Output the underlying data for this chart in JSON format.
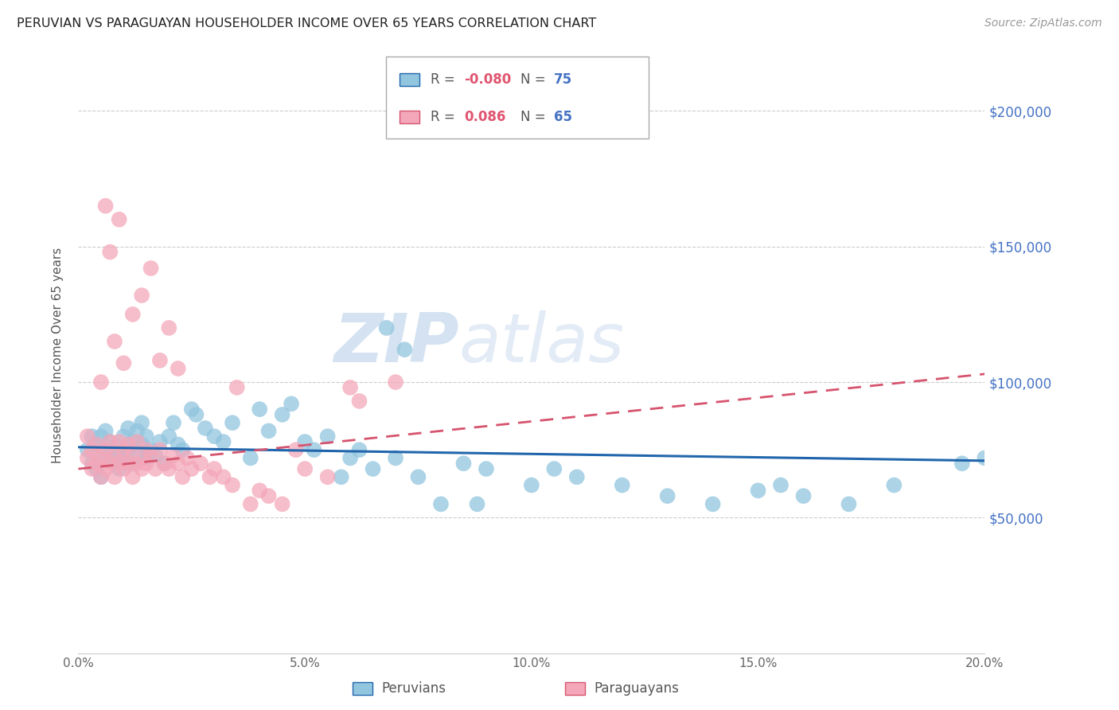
{
  "title": "PERUVIAN VS PARAGUAYAN HOUSEHOLDER INCOME OVER 65 YEARS CORRELATION CHART",
  "source": "Source: ZipAtlas.com",
  "ylabel": "Householder Income Over 65 years",
  "x_tick_labels": [
    "0.0%",
    "5.0%",
    "10.0%",
    "15.0%",
    "20.0%"
  ],
  "x_tick_positions": [
    0.0,
    5.0,
    10.0,
    15.0,
    20.0
  ],
  "y_tick_labels": [
    "$50,000",
    "$100,000",
    "$150,000",
    "$200,000"
  ],
  "y_tick_positions": [
    50000,
    100000,
    150000,
    200000
  ],
  "blue_color": "#92c5de",
  "pink_color": "#f4a7b9",
  "blue_line_color": "#2166ac",
  "pink_line_color": "#d6546e",
  "label1": "Peruvians",
  "label2": "Paraguayans",
  "watermark": "ZIPatlas",
  "bg_color": "#ffffff",
  "grid_color": "#cccccc",
  "blue_x": [
    0.2,
    0.3,
    0.3,
    0.4,
    0.4,
    0.5,
    0.5,
    0.5,
    0.6,
    0.6,
    0.7,
    0.7,
    0.8,
    0.8,
    0.9,
    0.9,
    1.0,
    1.0,
    1.1,
    1.1,
    1.2,
    1.2,
    1.3,
    1.3,
    1.4,
    1.4,
    1.5,
    1.5,
    1.6,
    1.7,
    1.8,
    1.9,
    2.0,
    2.1,
    2.2,
    2.3,
    2.5,
    2.6,
    2.8,
    3.0,
    3.2,
    3.4,
    3.8,
    4.0,
    4.2,
    4.5,
    4.7,
    5.0,
    5.2,
    5.5,
    5.8,
    6.0,
    6.2,
    6.5,
    7.0,
    7.5,
    8.0,
    8.5,
    9.0,
    10.0,
    10.5,
    11.0,
    12.0,
    13.0,
    14.0,
    15.0,
    16.0,
    17.0,
    18.0,
    19.5,
    6.8,
    7.2,
    8.8,
    15.5,
    20.0
  ],
  "blue_y": [
    75000,
    70000,
    80000,
    68000,
    77000,
    72000,
    65000,
    80000,
    75000,
    82000,
    73000,
    78000,
    70000,
    76000,
    68000,
    74000,
    72000,
    80000,
    75000,
    83000,
    70000,
    78000,
    73000,
    82000,
    77000,
    85000,
    72000,
    80000,
    75000,
    73000,
    78000,
    70000,
    80000,
    85000,
    77000,
    75000,
    90000,
    88000,
    83000,
    80000,
    78000,
    85000,
    72000,
    90000,
    82000,
    88000,
    92000,
    78000,
    75000,
    80000,
    65000,
    72000,
    75000,
    68000,
    72000,
    65000,
    55000,
    70000,
    68000,
    62000,
    68000,
    65000,
    62000,
    58000,
    55000,
    60000,
    58000,
    55000,
    62000,
    70000,
    120000,
    112000,
    55000,
    62000,
    72000
  ],
  "pink_x": [
    0.2,
    0.2,
    0.3,
    0.3,
    0.4,
    0.4,
    0.5,
    0.5,
    0.6,
    0.6,
    0.7,
    0.7,
    0.8,
    0.8,
    0.9,
    0.9,
    1.0,
    1.0,
    1.1,
    1.1,
    1.2,
    1.2,
    1.3,
    1.3,
    1.4,
    1.5,
    1.5,
    1.6,
    1.7,
    1.8,
    1.9,
    2.0,
    2.1,
    2.2,
    2.3,
    2.4,
    2.5,
    2.7,
    2.9,
    3.0,
    3.2,
    3.4,
    3.8,
    4.0,
    4.2,
    4.5,
    5.0,
    5.5,
    6.0,
    7.0,
    0.5,
    0.8,
    1.0,
    1.2,
    1.4,
    1.6,
    1.8,
    2.0,
    2.2,
    3.5,
    4.8,
    6.2,
    0.6,
    0.9,
    0.7
  ],
  "pink_y": [
    72000,
    80000,
    68000,
    75000,
    70000,
    77000,
    65000,
    72000,
    68000,
    75000,
    70000,
    78000,
    65000,
    73000,
    70000,
    78000,
    68000,
    75000,
    70000,
    77000,
    65000,
    73000,
    70000,
    78000,
    68000,
    75000,
    70000,
    73000,
    68000,
    75000,
    70000,
    68000,
    73000,
    70000,
    65000,
    72000,
    68000,
    70000,
    65000,
    68000,
    65000,
    62000,
    55000,
    60000,
    58000,
    55000,
    68000,
    65000,
    98000,
    100000,
    100000,
    115000,
    107000,
    125000,
    132000,
    142000,
    108000,
    120000,
    105000,
    98000,
    75000,
    93000,
    165000,
    160000,
    148000
  ]
}
